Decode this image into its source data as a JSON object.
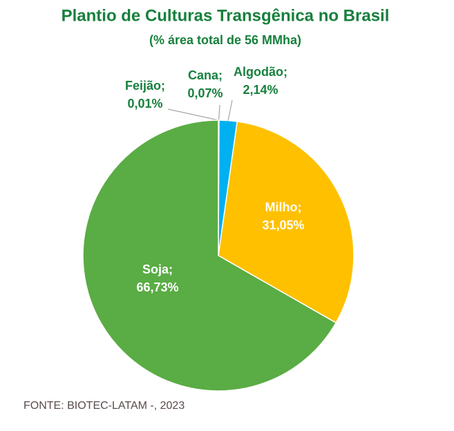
{
  "chart_data": {
    "type": "pie",
    "title": "Plantio de Culturas Transgênica no Brasil",
    "subtitle": "(% área total de 56 MMha)",
    "categories": [
      "Feijão;",
      "Cana;",
      "Algodão;",
      "Milho;",
      "Soja;"
    ],
    "values": [
      0.01,
      0.07,
      2.14,
      31.05,
      66.73
    ],
    "value_labels": [
      "0,01%",
      "0,07%",
      "2,14%",
      "31,05%",
      "66,73%"
    ],
    "colors": [
      "#7f7f7f",
      "#a5a5a5",
      "#00b0f0",
      "#ffc000",
      "#5aac44"
    ],
    "source": "FONTE:  BIOTEC-LATAM -, 2023"
  }
}
